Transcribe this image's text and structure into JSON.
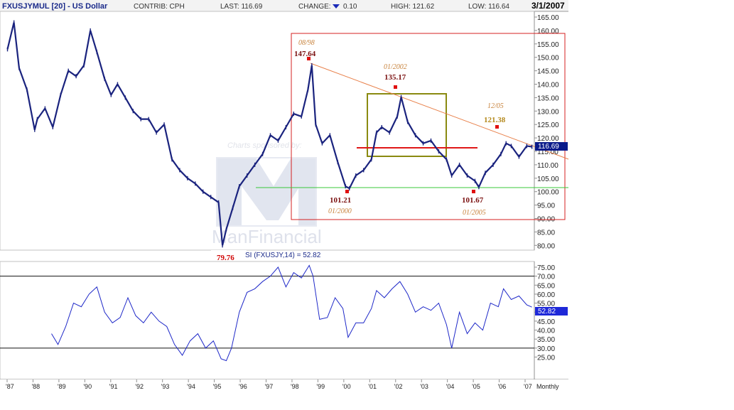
{
  "header": {
    "title": "FXUSJYMUL [20] - US Dollar",
    "contrib": "CONTRIB: CPH",
    "last": "LAST: 116.69",
    "change_label": "CHANGE:",
    "change_value": "0.10",
    "high": "HIGH: 121.62",
    "low": "LOW: 116.64",
    "date": "3/1/2007"
  },
  "colors": {
    "price_line": "#1a237e",
    "indicator_line": "#1e28c8",
    "box_red": "#d42020",
    "box_olive": "#8a8a10",
    "support_green": "#38c838",
    "resistance_red": "#e01818",
    "trend_orange": "#e8804a",
    "marker_red": "#e01010",
    "last_badge_bg": "#0a1a8a",
    "indicator_badge_bg": "#1e28d8"
  },
  "watermark": {
    "sponsor_text": "Charts sponsored by:",
    "brand": "ManFinancial"
  },
  "annotations": {
    "peak_1998_date": "08/98",
    "peak_1998_value": "147.64",
    "peak_2002_date": "01/2002",
    "peak_2002_value": "135.17",
    "peak_2005_date": "12/05",
    "peak_2005_value": "121.38",
    "low_2000_value": "101.21",
    "low_2000_date": "01/2000",
    "low_2005_value": "101.67",
    "low_2005_date": "01/2005",
    "low_1995_value": "79.76",
    "last_badge": "116.69"
  },
  "indicator": {
    "label": "SI (FXUSJY,14) = 52.82",
    "badge": "52.82"
  },
  "x_footer_label": "Monthly",
  "chart_data": [
    {
      "type": "line",
      "title": "FXUSJYMUL [20] - US Dollar",
      "ylim": [
        78,
        167
      ],
      "y_ticks": [
        "165.00",
        "160.00",
        "155.00",
        "150.00",
        "145.00",
        "140.00",
        "135.00",
        "130.00",
        "125.00",
        "120.00",
        "115.00",
        "110.00",
        "105.00",
        "100.00",
        "95.00",
        "90.00",
        "85.00",
        "80.00"
      ],
      "x_ticks": [
        "'87",
        "'88",
        "'89",
        "'90",
        "'91",
        "'92",
        "'93",
        "'94",
        "'95",
        "'96",
        "'97",
        "'98",
        "'99",
        "'00",
        "'01",
        "'02",
        "'03",
        "'04",
        "'05",
        "'06",
        "'07"
      ],
      "x": [
        1986.85,
        1987.1,
        1987.3,
        1987.6,
        1987.9,
        1988.0,
        1988.3,
        1988.6,
        1988.9,
        1989.2,
        1989.5,
        1989.8,
        1990.05,
        1990.3,
        1990.6,
        1990.85,
        1991.1,
        1991.4,
        1991.7,
        1992.0,
        1992.3,
        1992.6,
        1992.9,
        1993.2,
        1993.5,
        1993.8,
        1994.1,
        1994.4,
        1994.7,
        1995.0,
        1995.15,
        1995.3,
        1995.55,
        1995.8,
        1996.1,
        1996.4,
        1996.7,
        1997.0,
        1997.3,
        1997.6,
        1997.9,
        1998.2,
        1998.45,
        1998.6,
        1998.75,
        1999.0,
        1999.3,
        1999.6,
        1999.9,
        2000.05,
        2000.3,
        2000.6,
        2000.9,
        2001.1,
        2001.3,
        2001.6,
        2001.9,
        2002.05,
        2002.3,
        2002.6,
        2002.9,
        2003.2,
        2003.5,
        2003.8,
        2004.0,
        2004.3,
        2004.6,
        2004.9,
        2005.05,
        2005.3,
        2005.6,
        2005.9,
        2006.1,
        2006.3,
        2006.6,
        2006.9,
        2007.1
      ],
      "y": [
        153,
        163,
        146,
        138,
        123,
        127,
        131,
        124,
        136,
        145,
        143,
        147,
        160,
        152,
        142,
        136,
        140,
        135,
        130,
        127,
        127,
        122,
        125,
        112,
        108,
        105,
        103,
        100,
        98,
        96,
        80,
        86,
        94,
        102,
        106,
        110,
        114,
        121,
        119,
        124,
        129,
        128,
        138,
        147,
        125,
        118,
        121,
        111,
        102,
        101.2,
        106,
        108,
        112,
        122,
        124,
        122,
        128,
        135.2,
        126,
        121,
        118,
        119,
        115,
        112,
        106,
        110,
        106,
        104,
        101.7,
        107,
        110,
        114,
        118,
        117,
        113,
        117,
        116.7
      ]
    },
    {
      "type": "line",
      "title": "SI (FXUSJY,14) = 52.82",
      "ylim": [
        22,
        78
      ],
      "y_ticks": [
        "75.00",
        "70.00",
        "65.00",
        "60.00",
        "55.00",
        "50.00",
        "45.00",
        "40.00",
        "35.00",
        "30.00",
        "25.00"
      ],
      "reference_lines": [
        70,
        30
      ],
      "x": [
        1988.55,
        1988.8,
        1989.1,
        1989.4,
        1989.7,
        1990.0,
        1990.3,
        1990.6,
        1990.9,
        1991.2,
        1991.5,
        1991.8,
        1992.1,
        1992.4,
        1992.7,
        1993.0,
        1993.3,
        1993.6,
        1993.9,
        1994.2,
        1994.5,
        1994.8,
        1995.1,
        1995.3,
        1995.5,
        1995.8,
        1996.1,
        1996.4,
        1996.7,
        1997.0,
        1997.3,
        1997.6,
        1997.9,
        1998.2,
        1998.5,
        1998.65,
        1998.9,
        1999.2,
        1999.5,
        1999.8,
        2000.0,
        2000.3,
        2000.6,
        2000.9,
        2001.1,
        2001.4,
        2001.7,
        2002.0,
        2002.3,
        2002.6,
        2002.9,
        2003.2,
        2003.5,
        2003.8,
        2004.0,
        2004.3,
        2004.6,
        2004.9,
        2005.2,
        2005.5,
        2005.8,
        2006.0,
        2006.3,
        2006.6,
        2006.9,
        2007.1
      ],
      "y": [
        38,
        32,
        42,
        55,
        53,
        60,
        64,
        50,
        44,
        47,
        58,
        48,
        44,
        50,
        45,
        42,
        32,
        26,
        34,
        38,
        30,
        34,
        24,
        23,
        30,
        50,
        61,
        63,
        67,
        70,
        75,
        64,
        72,
        69,
        76,
        70,
        46,
        47,
        58,
        52,
        36,
        44,
        44,
        52,
        62,
        58,
        63,
        67,
        60,
        50,
        53,
        51,
        55,
        43,
        30,
        50,
        38,
        44,
        40,
        55,
        53,
        63,
        57,
        59,
        54,
        52.8
      ]
    }
  ]
}
